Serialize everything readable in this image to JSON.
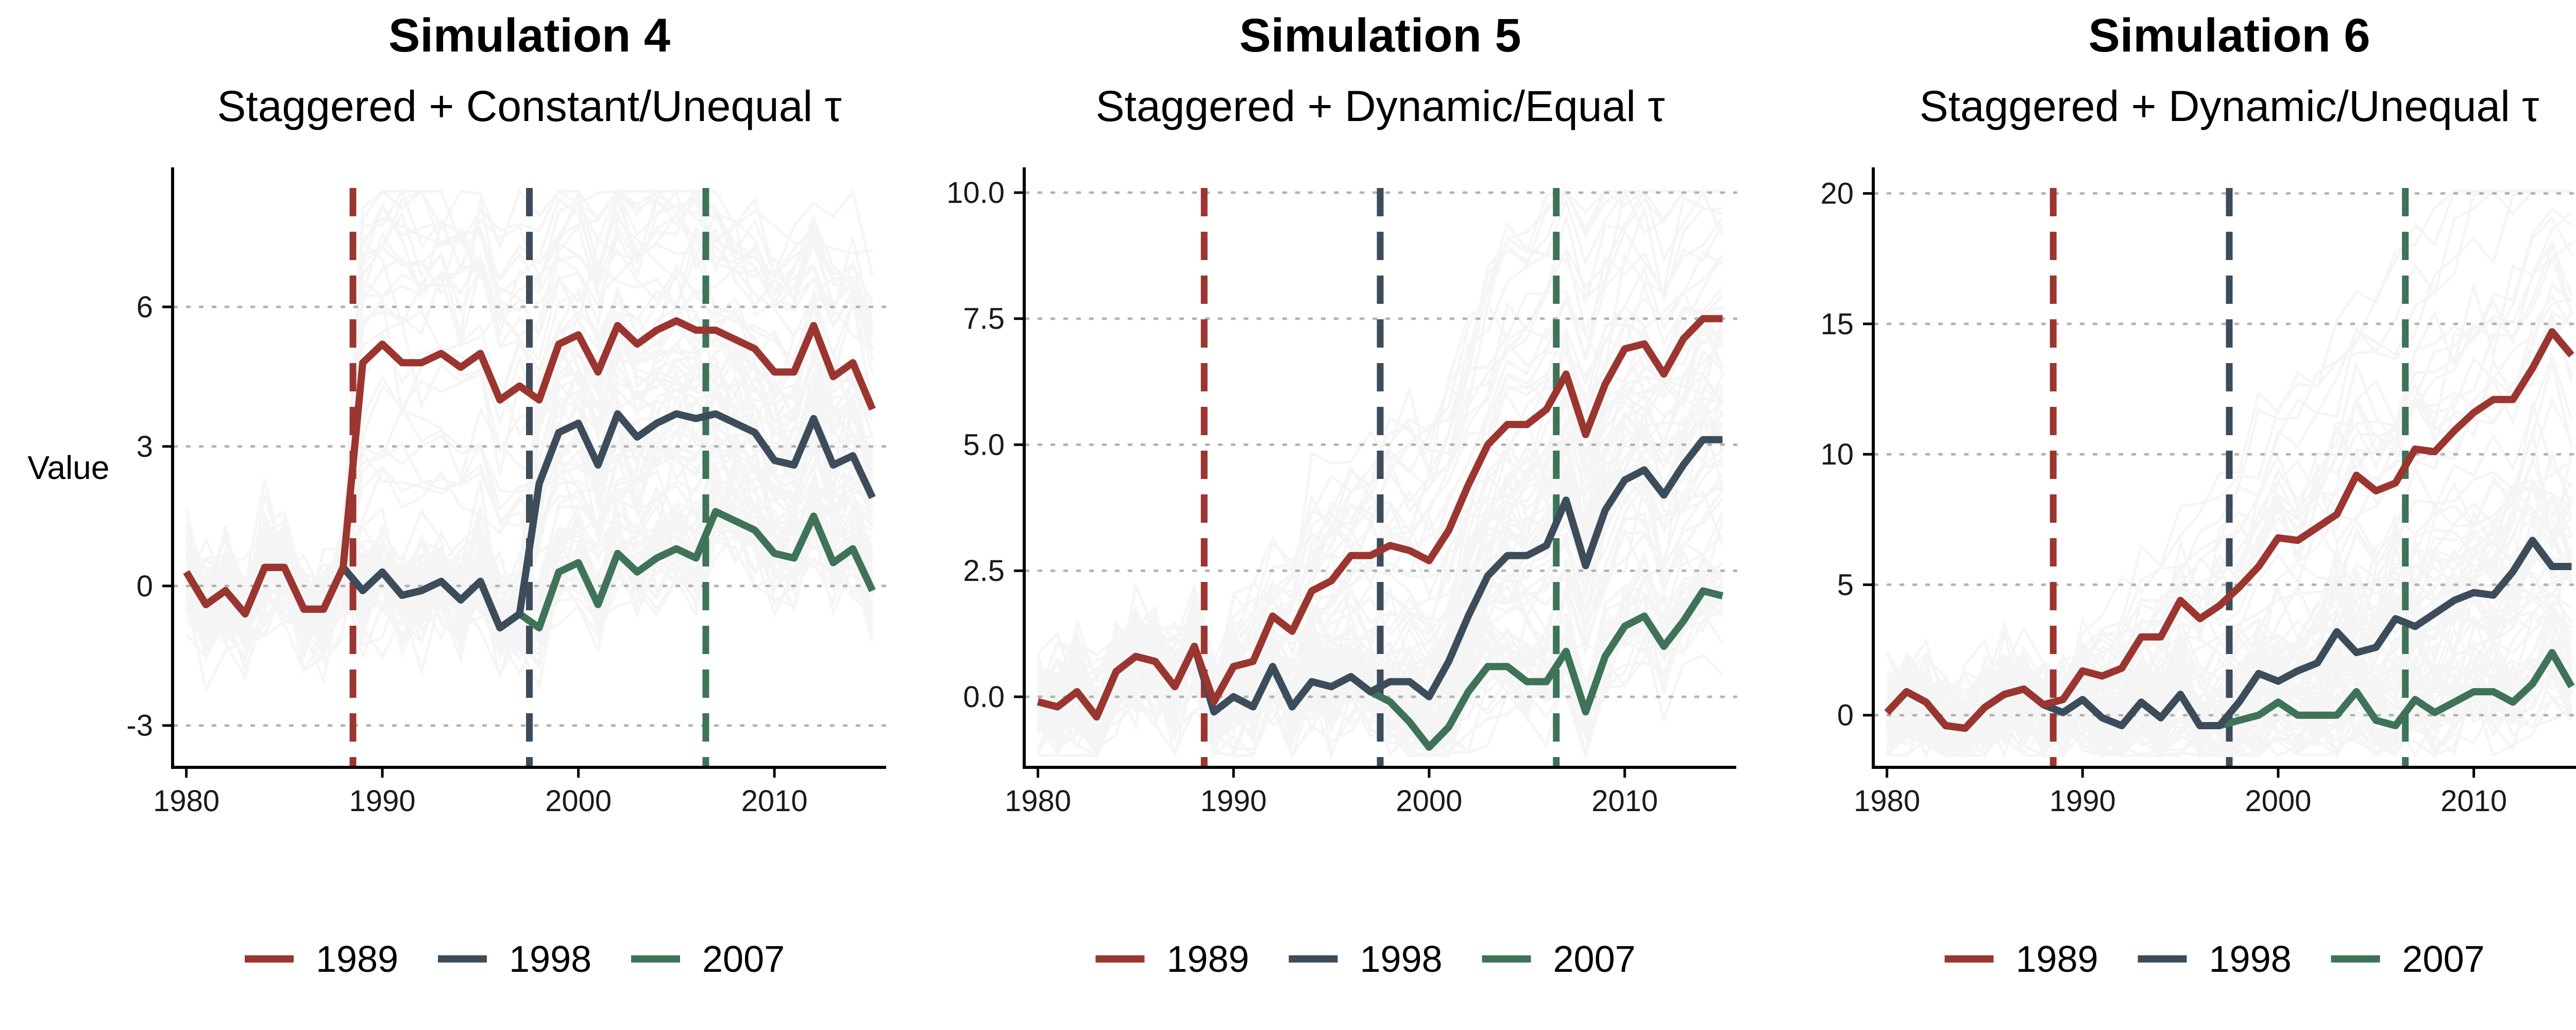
{
  "colors": {
    "c1989": "#9b3530",
    "c1998": "#3c4c5a",
    "c2007": "#3e7358",
    "background_lines": "#b4b4b4",
    "grid": "#b3b3b3",
    "axis": "#000000"
  },
  "chart_data": [
    {
      "type": "line",
      "title": "Simulation 4",
      "subtitle": "Staggered + Constant/Unequal τ",
      "xlabel": "",
      "ylabel": "Value",
      "xlim": [
        1979.3,
        2015.7
      ],
      "ylim": [
        -3.9,
        9.0
      ],
      "xticks": [
        1980,
        1990,
        2000,
        2010
      ],
      "yticks": [
        -3,
        0,
        3,
        6
      ],
      "ytick_labels": [
        "-3",
        "0",
        "3",
        "6"
      ],
      "grid": "horizontal dotted",
      "vlines": [
        1988.5,
        1997.5,
        2006.5
      ],
      "x": [
        1980,
        1981,
        1982,
        1983,
        1984,
        1985,
        1986,
        1987,
        1988,
        1989,
        1990,
        1991,
        1992,
        1993,
        1994,
        1995,
        1996,
        1997,
        1998,
        1999,
        2000,
        2001,
        2002,
        2003,
        2004,
        2005,
        2006,
        2007,
        2008,
        2009,
        2010,
        2011,
        2012,
        2013,
        2014,
        2015
      ],
      "series": [
        {
          "name": "1989",
          "color_key": "c1989",
          "values": [
            0.3,
            -0.4,
            -0.1,
            -0.6,
            0.4,
            0.4,
            -0.5,
            -0.5,
            0.4,
            4.8,
            5.2,
            4.8,
            4.8,
            5.0,
            4.7,
            5.0,
            4.0,
            4.3,
            4.0,
            5.2,
            5.4,
            4.6,
            5.6,
            5.2,
            5.5,
            5.7,
            5.5,
            5.5,
            5.3,
            5.1,
            4.6,
            4.6,
            5.6,
            4.5,
            4.8,
            3.8
          ]
        },
        {
          "name": "1998",
          "color_key": "c1998",
          "values": [
            0.3,
            -0.4,
            -0.1,
            -0.6,
            0.4,
            0.4,
            -0.5,
            -0.5,
            0.4,
            -0.1,
            0.3,
            -0.2,
            -0.1,
            0.1,
            -0.3,
            0.1,
            -0.9,
            -0.6,
            2.2,
            3.3,
            3.5,
            2.6,
            3.7,
            3.2,
            3.5,
            3.7,
            3.6,
            3.7,
            3.5,
            3.3,
            2.7,
            2.6,
            3.6,
            2.6,
            2.8,
            1.9
          ]
        },
        {
          "name": "2007",
          "color_key": "c2007",
          "values": [
            0.3,
            -0.4,
            -0.1,
            -0.6,
            0.4,
            0.4,
            -0.5,
            -0.5,
            0.4,
            -0.1,
            0.3,
            -0.2,
            -0.1,
            0.1,
            -0.3,
            0.1,
            -0.9,
            -0.6,
            -0.9,
            0.3,
            0.5,
            -0.4,
            0.7,
            0.3,
            0.6,
            0.8,
            0.6,
            1.6,
            1.4,
            1.2,
            0.7,
            0.6,
            1.5,
            0.5,
            0.8,
            -0.1
          ]
        }
      ]
    },
    {
      "type": "line",
      "title": "Simulation 5",
      "subtitle": "Staggered + Dynamic/Equal τ",
      "xlabel": "",
      "ylabel": "",
      "xlim": [
        1979.3,
        2015.7
      ],
      "ylim": [
        -1.4,
        10.5
      ],
      "xticks": [
        1980,
        1990,
        2000,
        2010
      ],
      "yticks": [
        0,
        2.5,
        5,
        7.5,
        10
      ],
      "ytick_labels": [
        "0.0",
        "2.5",
        "5.0",
        "7.5",
        "10.0"
      ],
      "grid": "horizontal dotted",
      "vlines": [
        1988.5,
        1997.5,
        2006.5
      ],
      "x": [
        1980,
        1981,
        1982,
        1983,
        1984,
        1985,
        1986,
        1987,
        1988,
        1989,
        1990,
        1991,
        1992,
        1993,
        1994,
        1995,
        1996,
        1997,
        1998,
        1999,
        2000,
        2001,
        2002,
        2003,
        2004,
        2005,
        2006,
        2007,
        2008,
        2009,
        2010,
        2011,
        2012,
        2013,
        2014,
        2015
      ],
      "series": [
        {
          "name": "1989",
          "color_key": "c1989",
          "values": [
            -0.1,
            -0.2,
            0.1,
            -0.4,
            0.5,
            0.8,
            0.7,
            0.2,
            1.0,
            -0.1,
            0.6,
            0.7,
            1.6,
            1.3,
            2.1,
            2.3,
            2.8,
            2.8,
            3.0,
            2.9,
            2.7,
            3.3,
            4.2,
            5.0,
            5.4,
            5.4,
            5.7,
            6.4,
            5.2,
            6.2,
            6.9,
            7.0,
            6.4,
            7.1,
            7.5,
            7.5
          ]
        },
        {
          "name": "1998",
          "color_key": "c1998",
          "values": [
            -0.1,
            -0.2,
            0.1,
            -0.4,
            0.5,
            0.8,
            0.7,
            0.2,
            1.0,
            -0.3,
            0.0,
            -0.2,
            0.6,
            -0.2,
            0.3,
            0.2,
            0.4,
            0.1,
            0.3,
            0.3,
            0.0,
            0.7,
            1.6,
            2.4,
            2.8,
            2.8,
            3.0,
            3.9,
            2.6,
            3.7,
            4.3,
            4.5,
            4.0,
            4.6,
            5.1,
            5.1
          ]
        },
        {
          "name": "2007",
          "color_key": "c2007",
          "values": [
            -0.1,
            -0.2,
            0.1,
            -0.4,
            0.5,
            0.8,
            0.7,
            0.2,
            1.0,
            -0.3,
            0.0,
            -0.2,
            0.6,
            -0.2,
            0.3,
            0.2,
            0.4,
            0.1,
            -0.1,
            -0.5,
            -1.0,
            -0.6,
            0.1,
            0.6,
            0.6,
            0.3,
            0.3,
            0.9,
            -0.3,
            0.8,
            1.4,
            1.6,
            1.0,
            1.5,
            2.1,
            2.0
          ]
        }
      ]
    },
    {
      "type": "line",
      "title": "Simulation 6",
      "subtitle": "Staggered + Dynamic/Unequal τ",
      "xlabel": "",
      "ylabel": "",
      "xlim": [
        1979.3,
        2015.7
      ],
      "ylim": [
        -2.0,
        21.0
      ],
      "xticks": [
        1980,
        1990,
        2000,
        2010
      ],
      "yticks": [
        0,
        5,
        10,
        15,
        20
      ],
      "ytick_labels": [
        "0",
        "5",
        "10",
        "15",
        "20"
      ],
      "grid": "horizontal dotted",
      "vlines": [
        1988.5,
        1997.5,
        2006.5
      ],
      "x": [
        1980,
        1981,
        1982,
        1983,
        1984,
        1985,
        1986,
        1987,
        1988,
        1989,
        1990,
        1991,
        1992,
        1993,
        1994,
        1995,
        1996,
        1997,
        1998,
        1999,
        2000,
        2001,
        2002,
        2003,
        2004,
        2005,
        2006,
        2007,
        2008,
        2009,
        2010,
        2011,
        2012,
        2013,
        2014,
        2015
      ],
      "series": [
        {
          "name": "1989",
          "color_key": "c1989",
          "values": [
            0.1,
            0.9,
            0.5,
            -0.4,
            -0.5,
            0.3,
            0.8,
            1.0,
            0.4,
            0.6,
            1.7,
            1.5,
            1.8,
            3.0,
            3.0,
            4.4,
            3.7,
            4.2,
            4.9,
            5.7,
            6.8,
            6.7,
            7.2,
            7.7,
            9.2,
            8.6,
            8.9,
            10.2,
            10.1,
            10.9,
            11.6,
            12.1,
            12.1,
            13.3,
            14.7,
            13.8
          ]
        },
        {
          "name": "1998",
          "color_key": "c1998",
          "values": [
            0.1,
            0.9,
            0.5,
            -0.4,
            -0.5,
            0.3,
            0.8,
            1.0,
            0.4,
            0.1,
            0.6,
            -0.1,
            -0.4,
            0.5,
            -0.1,
            0.8,
            -0.4,
            -0.4,
            0.5,
            1.6,
            1.3,
            1.7,
            2.0,
            3.2,
            2.4,
            2.6,
            3.7,
            3.4,
            3.9,
            4.4,
            4.7,
            4.6,
            5.5,
            6.7,
            5.7,
            5.7
          ]
        },
        {
          "name": "2007",
          "color_key": "c2007",
          "values": [
            0.1,
            0.9,
            0.5,
            -0.4,
            -0.5,
            0.3,
            0.8,
            1.0,
            0.4,
            0.1,
            0.6,
            -0.1,
            -0.4,
            0.5,
            -0.1,
            0.8,
            -0.4,
            -0.4,
            -0.2,
            0.0,
            0.5,
            0.0,
            0.0,
            0.0,
            0.9,
            -0.2,
            -0.4,
            0.6,
            0.1,
            0.5,
            0.9,
            0.9,
            0.5,
            1.2,
            2.4,
            1.1
          ]
        }
      ]
    }
  ],
  "legend": {
    "placement": "bottom",
    "items": [
      {
        "label": "1989",
        "color_key": "c1989"
      },
      {
        "label": "1998",
        "color_key": "c1998"
      },
      {
        "label": "2007",
        "color_key": "c2007"
      }
    ]
  }
}
